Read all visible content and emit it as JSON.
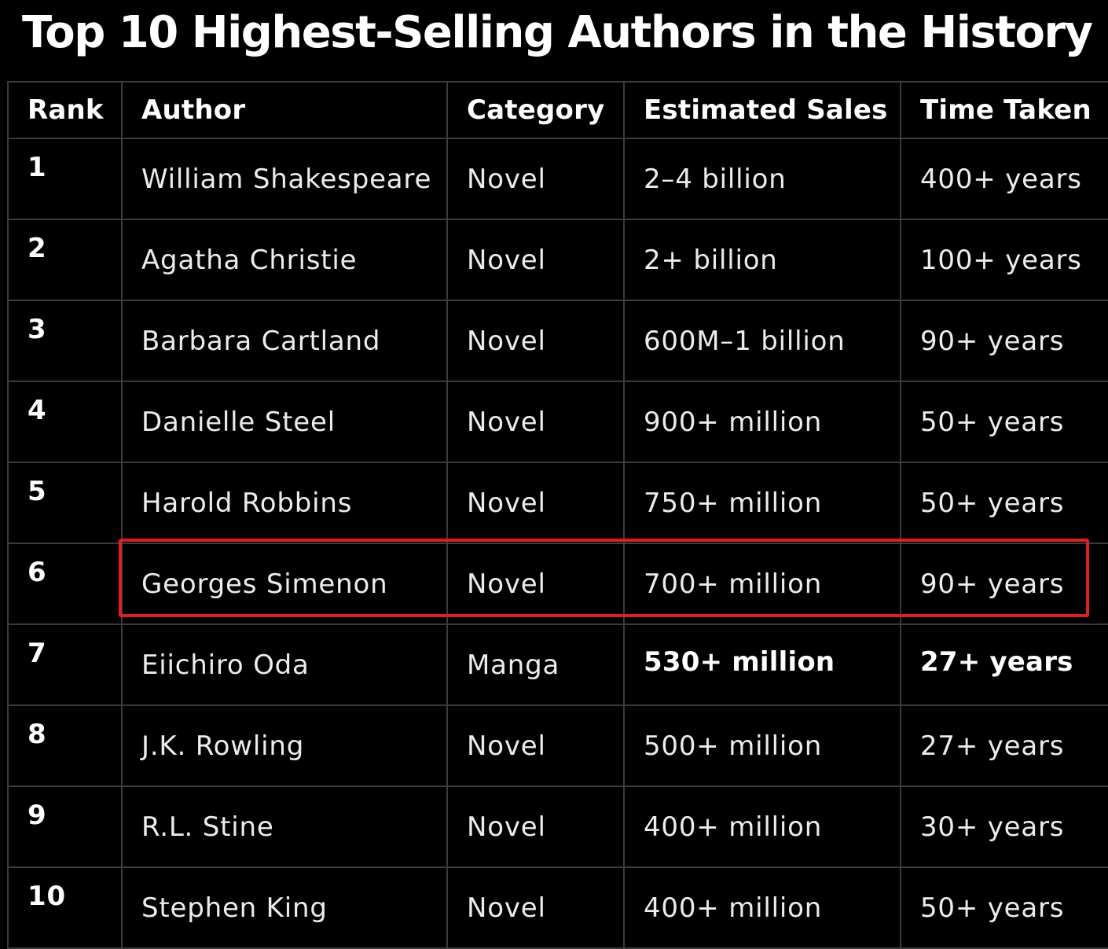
{
  "title": "Top 10 Highest-Selling Authors in the History",
  "table": {
    "headers": [
      "Rank",
      "Author",
      "Category",
      "Estimated Sales",
      "Time Taken"
    ],
    "rows": [
      {
        "rank": "1",
        "author": "William Shakespeare",
        "category": "Novel",
        "sales": "2–4 billion",
        "time": "400+ years"
      },
      {
        "rank": "2",
        "author": "Agatha Christie",
        "category": "Novel",
        "sales": "2+ billion",
        "time": "100+ years"
      },
      {
        "rank": "3",
        "author": "Barbara Cartland",
        "category": "Novel",
        "sales": "600M–1 billion",
        "time": "90+ years"
      },
      {
        "rank": "4",
        "author": "Danielle Steel",
        "category": "Novel",
        "sales": "900+ million",
        "time": "50+ years"
      },
      {
        "rank": "5",
        "author": "Harold Robbins",
        "category": "Novel",
        "sales": "750+ million",
        "time": "50+ years"
      },
      {
        "rank": "6",
        "author": "Georges Simenon",
        "category": "Novel",
        "sales": "700+ million",
        "time": "90+ years"
      },
      {
        "rank": "7",
        "author": "Eiichiro Oda",
        "category": "Manga",
        "sales": "530+ million",
        "time": "27+ years"
      },
      {
        "rank": "8",
        "author": "J.K. Rowling",
        "category": "Novel",
        "sales": "500+ million",
        "time": "27+ years"
      },
      {
        "rank": "9",
        "author": "R.L. Stine",
        "category": "Novel",
        "sales": "400+ million",
        "time": "30+ years"
      },
      {
        "rank": "10",
        "author": "Stephen King",
        "category": "Novel",
        "sales": "400+ million",
        "time": "50+ years"
      }
    ]
  },
  "highlight": {
    "rank": "7",
    "color": "#e01f1f"
  },
  "colors": {
    "background": "#000000",
    "text": "#ffffff",
    "grid": "#3b3b3b"
  }
}
